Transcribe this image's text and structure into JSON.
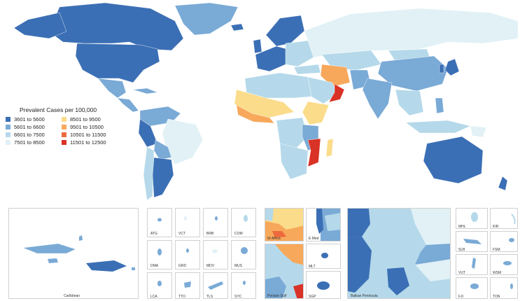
{
  "legend": {
    "title": "Prevalent Cases per 100,000",
    "items": [
      {
        "label": "3601 to 5600",
        "color": "#3b6fb5"
      },
      {
        "label": "5601 to 6600",
        "color": "#7aaad6"
      },
      {
        "label": "6601 to 7500",
        "color": "#b5d9ea"
      },
      {
        "label": "7501 to 8500",
        "color": "#e1f1f6"
      },
      {
        "label": "8501 to 9500",
        "color": "#fbdc8a"
      },
      {
        "label": "9501 to 10500",
        "color": "#f7a85b"
      },
      {
        "label": "10501 to 11500",
        "color": "#ec6a3d"
      },
      {
        "label": "11501 to 12500",
        "color": "#d93226"
      }
    ]
  },
  "insets": {
    "caribbean": "Caribbean",
    "atg": "ATG",
    "vct": "VCT",
    "brb": "BRB",
    "com": "COM",
    "dma": "DMA",
    "grd": "GRD",
    "mdv": "MDV",
    "mus": "MUS",
    "lca": "LCA",
    "tto": "TTO",
    "tls": "TLS",
    "syc": "SYC",
    "w_africa": "W Africa",
    "e_med": "E Med",
    "mlt": "MLT",
    "persian_gulf": "Persian Gulf",
    "sgp": "SGP",
    "balkan": "Balkan Peninsula",
    "mhl": "MHL",
    "kir": "KIR",
    "slb": "SLB",
    "fsm": "FSM",
    "vut": "VUT",
    "wsm": "WSM",
    "fji": "FJI",
    "ton": "TON"
  }
}
